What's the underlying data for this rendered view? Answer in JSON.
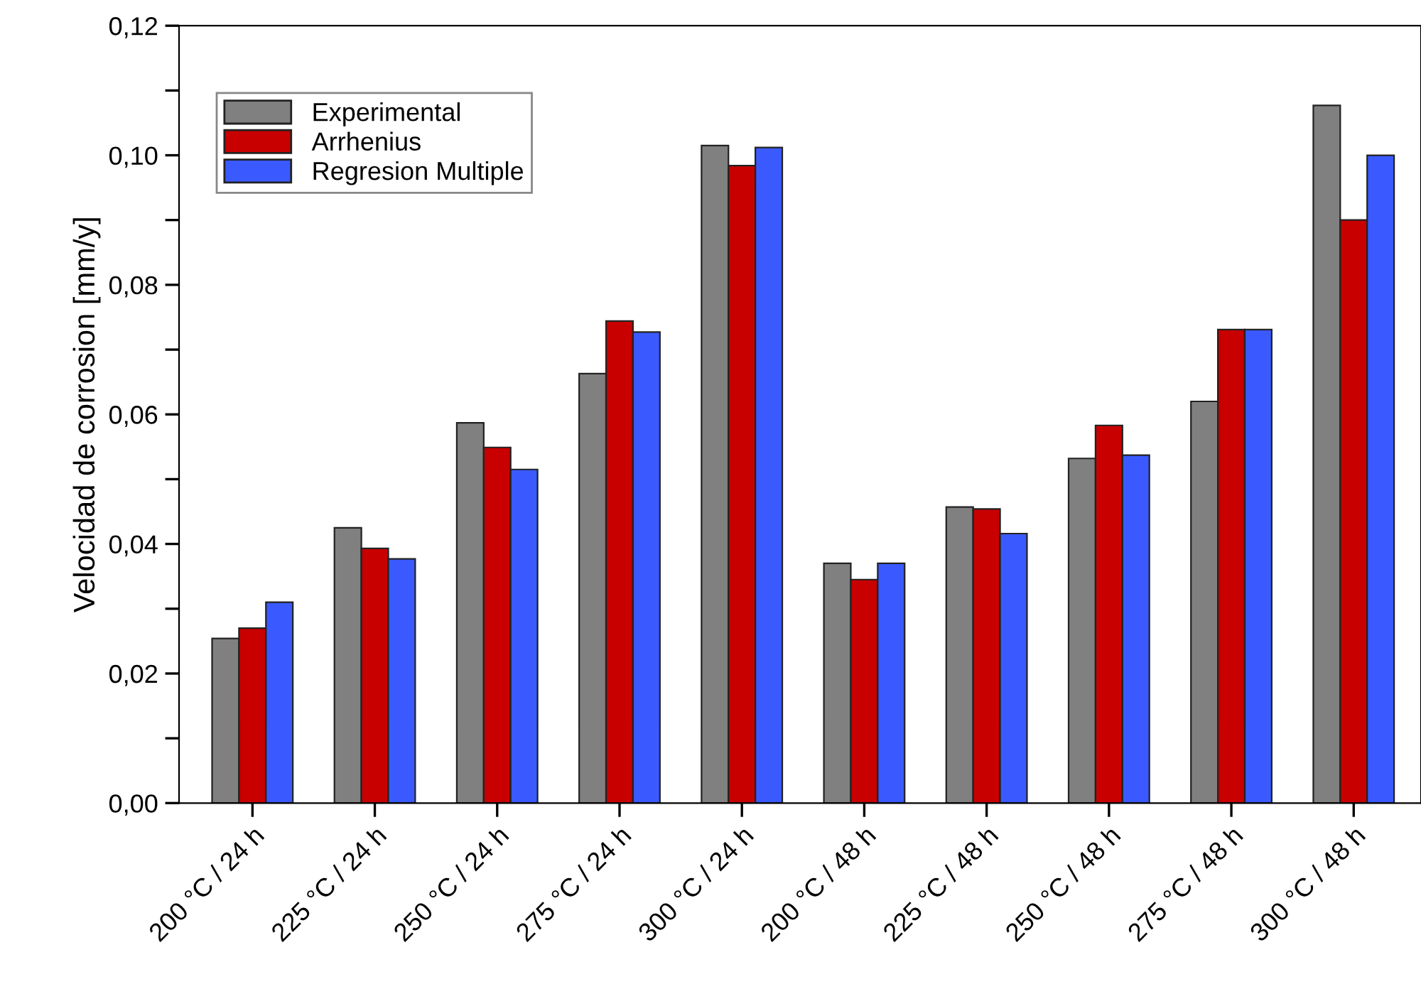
{
  "chart_data": {
    "type": "bar",
    "ylabel": "Velocidad de corrosion [mm/y]",
    "categories": [
      "200 °C / 24 h",
      "225 °C / 24 h",
      "250 °C / 24 h",
      "275 °C / 24 h",
      "300 °C / 24 h",
      "200 °C / 48 h",
      "225 °C / 48 h",
      "250 °C / 48 h",
      "275 °C / 48 h",
      "300 °C / 48 h"
    ],
    "series": [
      {
        "name": "Experimental",
        "color": "#808080",
        "values": [
          0.0254,
          0.0425,
          0.0587,
          0.0663,
          0.1015,
          0.037,
          0.0457,
          0.0532,
          0.062,
          0.1077
        ]
      },
      {
        "name": "Arrhenius",
        "color": "#c80000",
        "values": [
          0.027,
          0.0393,
          0.0549,
          0.0744,
          0.0984,
          0.0345,
          0.0454,
          0.0583,
          0.0731,
          0.09
        ]
      },
      {
        "name": "Regresion Multiple",
        "color": "#3a5aff",
        "values": [
          0.031,
          0.0377,
          0.0515,
          0.0727,
          0.1012,
          0.037,
          0.0416,
          0.0537,
          0.0731,
          0.1
        ]
      }
    ],
    "ylim": [
      0,
      0.12
    ],
    "yticks": [
      {
        "value": 0,
        "label": "0,00"
      },
      {
        "value": 0.01,
        "label": null
      },
      {
        "value": 0.02,
        "label": "0,02"
      },
      {
        "value": 0.03,
        "label": null
      },
      {
        "value": 0.04,
        "label": "0,04"
      },
      {
        "value": 0.05,
        "label": null
      },
      {
        "value": 0.06,
        "label": "0,06"
      },
      {
        "value": 0.07,
        "label": null
      },
      {
        "value": 0.08,
        "label": "0,08"
      },
      {
        "value": 0.09,
        "label": null
      },
      {
        "value": 0.1,
        "label": "0,10"
      },
      {
        "value": 0.11,
        "label": null
      },
      {
        "value": 0.12,
        "label": "0,12"
      }
    ],
    "grid": false,
    "legend": "top left"
  }
}
